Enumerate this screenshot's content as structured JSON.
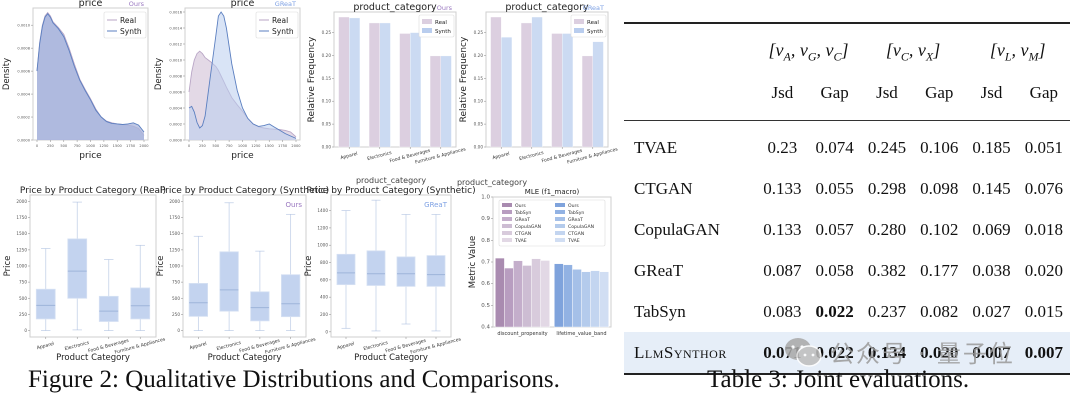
{
  "figure": {
    "caption": "Figure 2: Qualitative Distributions and Comparisons.",
    "colors": {
      "real": "#b9a6c6",
      "real_fill": "#dccfe0",
      "synth": "#5b7fc0",
      "synth_fill": "#b9cdee",
      "box": "#c3d3ef",
      "box_line": "#9eb4da",
      "ours_tag": "#9a78c0",
      "great_tag": "#7ea1e4"
    }
  },
  "table": {
    "caption": "Table 3: Joint evaluations.",
    "groups": [
      "[v_A, v_G, v_C]",
      "[v_C, v_X]",
      "[v_L, v_M]"
    ],
    "subheaders": [
      "Jsd",
      "Gap",
      "Jsd",
      "Gap",
      "Jsd",
      "Gap"
    ],
    "rows": [
      {
        "name": "TVAE",
        "values": [
          "0.23",
          "0.074",
          "0.245",
          "0.106",
          "0.185",
          "0.051"
        ],
        "bold": [
          false,
          false,
          false,
          false,
          false,
          false
        ]
      },
      {
        "name": "CTGAN",
        "values": [
          "0.133",
          "0.055",
          "0.298",
          "0.098",
          "0.145",
          "0.076"
        ],
        "bold": [
          false,
          false,
          false,
          false,
          false,
          false
        ]
      },
      {
        "name": "CopulaGAN",
        "values": [
          "0.133",
          "0.057",
          "0.280",
          "0.102",
          "0.069",
          "0.018"
        ],
        "bold": [
          false,
          false,
          false,
          false,
          false,
          false
        ]
      },
      {
        "name": "GReaT",
        "values": [
          "0.087",
          "0.058",
          "0.382",
          "0.177",
          "0.038",
          "0.020"
        ],
        "bold": [
          false,
          false,
          false,
          false,
          false,
          false
        ]
      },
      {
        "name": "TabSyn",
        "values": [
          "0.083",
          "0.022",
          "0.237",
          "0.082",
          "0.027",
          "0.015"
        ],
        "bold": [
          false,
          true,
          false,
          false,
          false,
          false
        ]
      },
      {
        "name": "LlmSynthor",
        "values": [
          "0.071",
          "0.022",
          "0.134",
          "0.020",
          "0.007",
          "0.007"
        ],
        "bold": [
          true,
          true,
          true,
          true,
          true,
          true
        ],
        "highlight": true
      }
    ]
  },
  "watermark": {
    "text": "公众号 · 量子位"
  },
  "chart_data": [
    {
      "id": "density-ours",
      "type": "area",
      "title": "price",
      "tag": "Ours",
      "xlabel": "price",
      "ylabel": "Density",
      "xlim": [
        0,
        2000
      ],
      "ylim": [
        0,
        0.00115
      ],
      "xticks": [
        0,
        250,
        500,
        750,
        1000,
        1250,
        1500,
        1750,
        2000
      ],
      "yticks": [
        "0.0000",
        "0.0002",
        "0.0004",
        "0.0006",
        "0.0008",
        "0.0010"
      ],
      "ytick_values": [
        0,
        0.0002,
        0.0004,
        0.0006,
        0.0008,
        0.001
      ],
      "legend": [
        "Real",
        "Synth"
      ],
      "legend_position": "top-right",
      "x": [
        0,
        50,
        100,
        150,
        200,
        250,
        300,
        400,
        500,
        600,
        700,
        800,
        900,
        1000,
        1100,
        1200,
        1300,
        1400,
        1500,
        1600,
        1700,
        1800,
        1900,
        2000
      ],
      "series": [
        {
          "name": "Real",
          "values": [
            0.0006,
            0.00085,
            0.001,
            0.00108,
            0.00111,
            0.00108,
            0.00103,
            0.00098,
            0.00092,
            0.0008,
            0.00066,
            0.00053,
            0.00044,
            0.00036,
            0.00027,
            0.0002,
            0.000165,
            0.00015,
            0.00014,
            0.000135,
            0.00013,
            0.00012,
            0.0001,
            4e-05
          ]
        },
        {
          "name": "Synth",
          "values": [
            0.0006,
            0.00084,
            0.00099,
            0.00107,
            0.0011,
            0.00107,
            0.00102,
            0.00097,
            0.0009,
            0.00078,
            0.00064,
            0.00052,
            0.00043,
            0.00035,
            0.00026,
            0.0002,
            0.00016,
            0.000145,
            0.00014,
            0.000135,
            0.00014,
            0.00015,
            0.00013,
            7e-05
          ]
        }
      ]
    },
    {
      "id": "density-great",
      "type": "area",
      "title": "price",
      "tag": "GReaT",
      "xlabel": "price",
      "ylabel": "Density",
      "xlim": [
        0,
        2000
      ],
      "ylim": [
        0,
        0.00165
      ],
      "xticks": [
        0,
        250,
        500,
        750,
        1000,
        1250,
        1500,
        1750,
        2000
      ],
      "yticks": [
        "0.0000",
        "0.0002",
        "0.0004",
        "0.0006",
        "0.0008",
        "0.0010",
        "0.0012",
        "0.0014",
        "0.0016"
      ],
      "ytick_values": [
        0,
        0.0002,
        0.0004,
        0.0006,
        0.0008,
        0.001,
        0.0012,
        0.0014,
        0.0016
      ],
      "legend": [
        "Real",
        "Synth"
      ],
      "legend_position": "top-right",
      "x": [
        0,
        50,
        100,
        150,
        200,
        250,
        300,
        400,
        500,
        550,
        600,
        650,
        700,
        800,
        900,
        1000,
        1100,
        1200,
        1300,
        1400,
        1500,
        1600,
        1700,
        1800,
        1900,
        2000
      ],
      "series": [
        {
          "name": "Real",
          "values": [
            0.0006,
            0.00085,
            0.001,
            0.00108,
            0.00111,
            0.00108,
            0.00103,
            0.00098,
            0.00092,
            0.00087,
            0.0008,
            0.00073,
            0.00066,
            0.00053,
            0.00044,
            0.00036,
            0.00027,
            0.0002,
            0.000165,
            0.00015,
            0.00014,
            0.000135,
            0.00013,
            0.00012,
            0.0001,
            4e-05
          ]
        },
        {
          "name": "Synth",
          "values": [
            0.0004,
            0.00042,
            0.00035,
            0.00022,
            0.00015,
            0.00018,
            0.0003,
            0.0008,
            0.0013,
            0.00155,
            0.0016,
            0.00155,
            0.0014,
            0.00095,
            0.00062,
            0.0004,
            0.00027,
            0.0002,
            0.00017,
            0.00018,
            0.0002,
            0.00016,
            0.00012,
            8e-05,
            5e-05,
            2e-05
          ]
        }
      ]
    },
    {
      "id": "bar-ours",
      "type": "bar",
      "title": "product_category",
      "tag": "Ours",
      "xlabel": "",
      "ylabel": "Relative Frequency",
      "ylim": [
        0,
        0.295
      ],
      "yticks": [
        "0.00",
        "0.05",
        "0.10",
        "0.15",
        "0.20",
        "0.25"
      ],
      "ytick_values": [
        0,
        0.05,
        0.1,
        0.15,
        0.2,
        0.25
      ],
      "categories": [
        "Apparel",
        "Electronics",
        "Food & Beverages",
        "Furniture & Appliances"
      ],
      "legend": [
        "Real",
        "Synth"
      ],
      "legend_position": "top-right",
      "series": [
        {
          "name": "Real",
          "values": [
            0.284,
            0.271,
            0.248,
            0.199
          ]
        },
        {
          "name": "Synth",
          "values": [
            0.282,
            0.271,
            0.25,
            0.199
          ]
        }
      ]
    },
    {
      "id": "bar-great",
      "type": "bar",
      "title": "product_category",
      "tag": "GReaT",
      "xlabel": "",
      "ylabel": "Relative Frequency",
      "ylim": [
        0,
        0.295
      ],
      "yticks": [
        "0.00",
        "0.05",
        "0.10",
        "0.15",
        "0.20",
        "0.25"
      ],
      "ytick_values": [
        0,
        0.05,
        0.1,
        0.15,
        0.2,
        0.25
      ],
      "categories": [
        "Apparel",
        "Electronics",
        "Food & Beverages",
        "Furniture & Appliances"
      ],
      "legend": [
        "Real",
        "Synth"
      ],
      "legend_position": "top-right",
      "series": [
        {
          "name": "Real",
          "values": [
            0.284,
            0.271,
            0.248,
            0.199
          ]
        },
        {
          "name": "Synth",
          "values": [
            0.24,
            0.284,
            0.248,
            0.23
          ]
        }
      ]
    },
    {
      "id": "box-real",
      "type": "box",
      "title": "Price by Product Category (Real)",
      "tag": "",
      "xlabel": "Product Category",
      "ylabel": "Price",
      "ylim": [
        -100,
        2100
      ],
      "yticks": [
        "0",
        "250",
        "500",
        "750",
        "1000",
        "1250",
        "1500",
        "1750",
        "2000"
      ],
      "ytick_values": [
        0,
        250,
        500,
        750,
        1000,
        1250,
        1500,
        1750,
        2000
      ],
      "categories": [
        "Apparel",
        "Electronics",
        "Food & Beverages",
        "Furniture & Appliances"
      ],
      "boxes": [
        {
          "min": 0,
          "q1": 180,
          "median": 390,
          "q3": 640,
          "max": 1270
        },
        {
          "min": 10,
          "q1": 500,
          "median": 920,
          "q3": 1420,
          "max": 1990
        },
        {
          "min": 0,
          "q1": 140,
          "median": 300,
          "q3": 530,
          "max": 1100
        },
        {
          "min": 0,
          "q1": 180,
          "median": 385,
          "q3": 660,
          "max": 1320
        }
      ]
    },
    {
      "id": "box-ours",
      "type": "box",
      "title": "Price by Product Category (Synthetic)",
      "tag": "Ours",
      "xlabel": "Product Category",
      "ylabel": "Price",
      "ylim": [
        -100,
        2100
      ],
      "yticks": [
        "0",
        "250",
        "500",
        "750",
        "1000",
        "1250",
        "1500",
        "1750",
        "2000"
      ],
      "ytick_values": [
        0,
        250,
        500,
        750,
        1000,
        1250,
        1500,
        1750,
        2000
      ],
      "categories": [
        "Apparel",
        "Electronics",
        "Food & Beverages",
        "Furniture & Appliances"
      ],
      "boxes": [
        {
          "min": 0,
          "q1": 220,
          "median": 430,
          "q3": 730,
          "max": 1460
        },
        {
          "min": 0,
          "q1": 300,
          "median": 630,
          "q3": 1220,
          "max": 1980
        },
        {
          "min": 0,
          "q1": 150,
          "median": 355,
          "q3": 600,
          "max": 1230
        },
        {
          "min": 0,
          "q1": 215,
          "median": 415,
          "q3": 865,
          "max": 1800
        }
      ]
    },
    {
      "id": "box-great",
      "type": "box",
      "title": "Price by Product Category (Synthetic)",
      "overlay_title": "product_category",
      "tag": "GReaT",
      "xlabel": "Product Category",
      "ylabel": "Price",
      "ylim": [
        -60,
        1580
      ],
      "yticks": [
        "0",
        "200",
        "400",
        "600",
        "800",
        "1000",
        "1200",
        "1400"
      ],
      "ytick_values": [
        0,
        200,
        400,
        600,
        800,
        1000,
        1200,
        1400
      ],
      "categories": [
        "Apparel",
        "Electronics",
        "Food & Beverages",
        "Furniture & Appliances"
      ],
      "boxes": [
        {
          "min": 40,
          "q1": 545,
          "median": 680,
          "q3": 895,
          "max": 1400
        },
        {
          "min": 10,
          "q1": 535,
          "median": 670,
          "q3": 935,
          "max": 1520
        },
        {
          "min": 90,
          "q1": 525,
          "median": 670,
          "q3": 865,
          "max": 1355
        },
        {
          "min": 10,
          "q1": 525,
          "median": 660,
          "q3": 880,
          "max": 1355
        }
      ]
    },
    {
      "id": "mle",
      "type": "bar",
      "title": "MLE (f1_macro)",
      "overlay_title": "product_category",
      "xlabel": "",
      "ylabel": "Metric Value",
      "ylim": [
        0.4,
        1.0
      ],
      "yticks": [
        "0.4",
        "0.5",
        "0.6",
        "0.7",
        "0.8",
        "0.9",
        "1.0"
      ],
      "ytick_values": [
        0.4,
        0.5,
        0.6,
        0.7,
        0.8,
        0.9,
        1.0
      ],
      "categories": [
        "discount_propensity",
        "lifetime_value_band"
      ],
      "methods": [
        "Ours",
        "TabSyn",
        "GReaT",
        "CopulaGAN",
        "CTGAN",
        "TVAE"
      ],
      "legend_position": "top",
      "series": [
        {
          "name": "discount_propensity",
          "values": [
            0.718,
            0.672,
            0.706,
            0.684,
            0.715,
            0.707
          ]
        },
        {
          "name": "lifetime_value_band",
          "values": [
            0.692,
            0.687,
            0.666,
            0.655,
            0.66,
            0.655
          ]
        }
      ],
      "palette_purple": [
        "#a98bb0",
        "#b89dc0",
        "#c4aecb",
        "#cdbdd3",
        "#d8cbdc",
        "#e2d8e5"
      ],
      "palette_blue": [
        "#7fa3dc",
        "#92b2e3",
        "#a5c0e8",
        "#b4cbec",
        "#c3d5f0",
        "#d1def3"
      ]
    }
  ]
}
